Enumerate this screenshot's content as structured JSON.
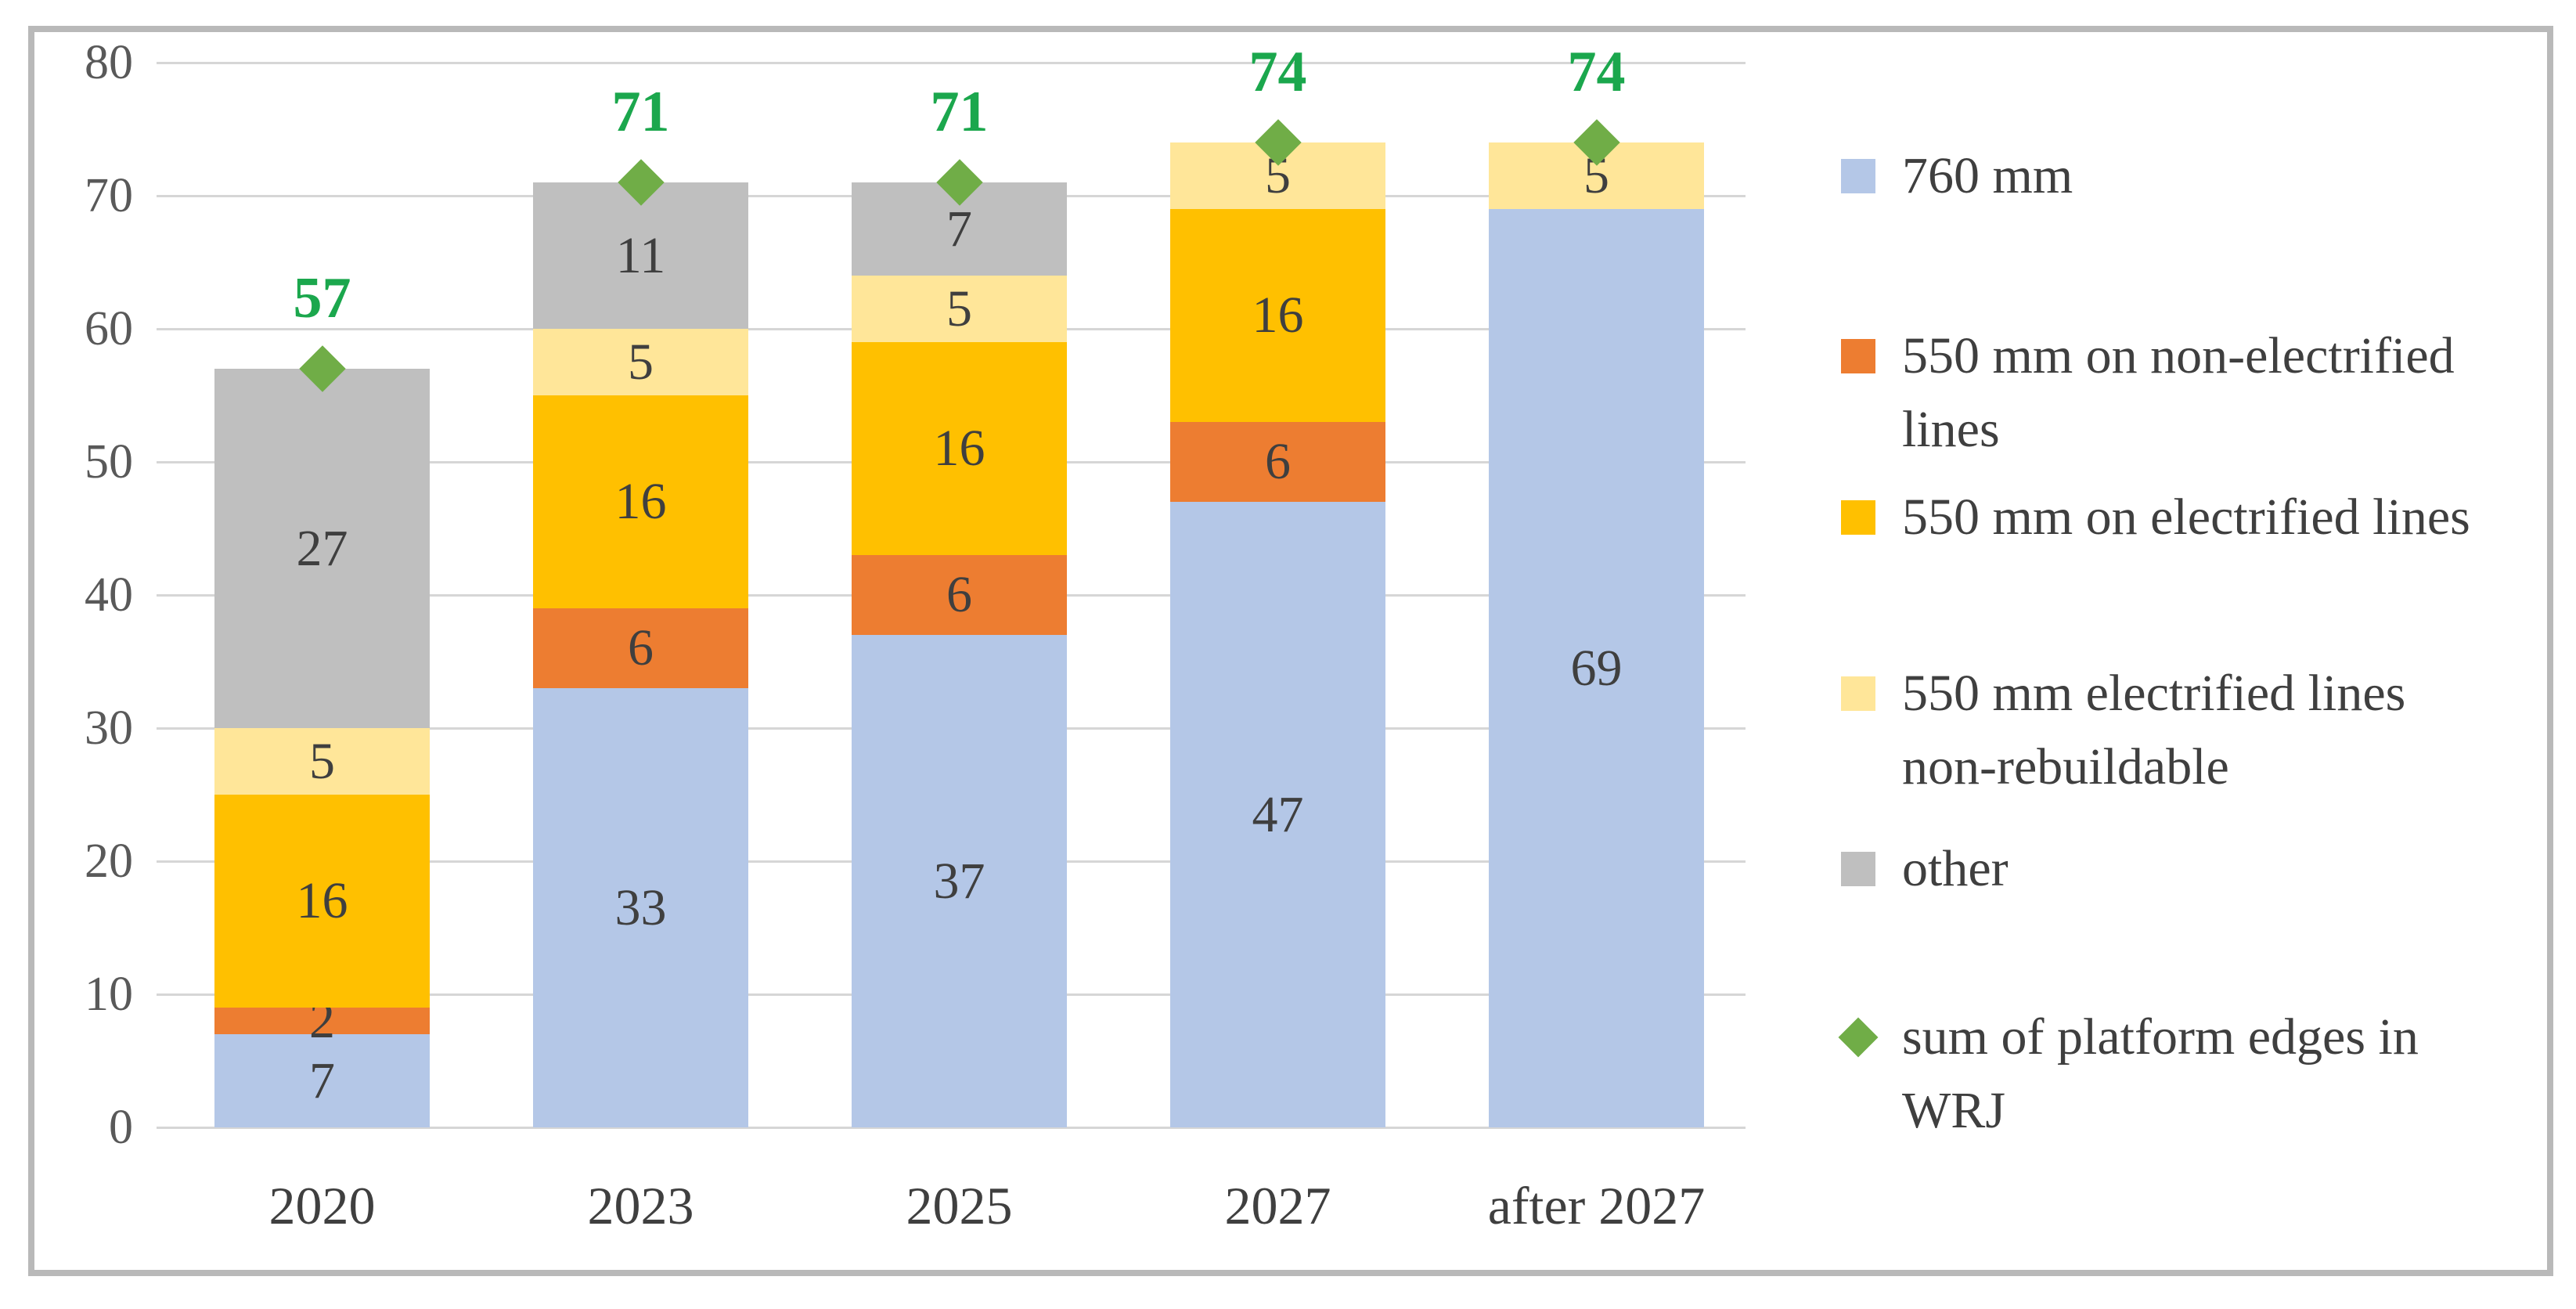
{
  "chart_data": {
    "type": "bar",
    "stacked": true,
    "title": "",
    "categories": [
      "2020",
      "2023",
      "2025",
      "2027",
      "after 2027"
    ],
    "series": [
      {
        "name": "760 mm",
        "color": "#B4C7E7",
        "values": [
          7,
          33,
          37,
          47,
          69
        ]
      },
      {
        "name": "550 mm on non-electrified lines",
        "color": "#ED7D31",
        "values": [
          2,
          6,
          6,
          6,
          0
        ]
      },
      {
        "name": "550 mm on electrified lines",
        "color": "#FFC000",
        "values": [
          16,
          16,
          16,
          16,
          0
        ]
      },
      {
        "name": "550 mm electrified lines non-rebuildable",
        "color": "#FFE699",
        "values": [
          5,
          5,
          5,
          5,
          5
        ]
      },
      {
        "name": "other",
        "color": "#BFBFBF",
        "values": [
          27,
          11,
          7,
          0,
          0
        ]
      }
    ],
    "markers": {
      "name": "sum of platform edges in WRJ",
      "shape": "diamond",
      "color": "#70AD47",
      "label_color": "#1BA74D",
      "values": [
        57,
        71,
        71,
        74,
        74
      ]
    },
    "totals": [
      57,
      71,
      71,
      74,
      74
    ],
    "ylim": [
      0,
      80
    ],
    "yticks": [
      "0",
      "10",
      "20",
      "30",
      "40",
      "50",
      "60",
      "70",
      "80"
    ],
    "grid": true,
    "legend_position": "right",
    "data_label_color": "#3F3F3F",
    "axis_label_color": "#595959",
    "gridline_color": "#D6D6D6",
    "frame_border_color": "#B9B9B9"
  },
  "legend": {
    "items": [
      {
        "lines": [
          "760 mm"
        ],
        "swatch": "square",
        "color": "#B4C7E7"
      },
      {
        "lines": [
          "550 mm on non-electrified",
          "lines"
        ],
        "swatch": "square",
        "color": "#ED7D31"
      },
      {
        "lines": [
          "550 mm on electrified lines"
        ],
        "swatch": "square",
        "color": "#FFC000"
      },
      {
        "lines": [
          "550 mm electrified lines",
          "non-rebuildable"
        ],
        "swatch": "square",
        "color": "#FFE699"
      },
      {
        "lines": [
          "other"
        ],
        "swatch": "square",
        "color": "#BFBFBF"
      },
      {
        "lines": [
          "sum of platform edges in",
          "WRJ"
        ],
        "swatch": "diamond",
        "color": "#70AD47"
      }
    ]
  }
}
